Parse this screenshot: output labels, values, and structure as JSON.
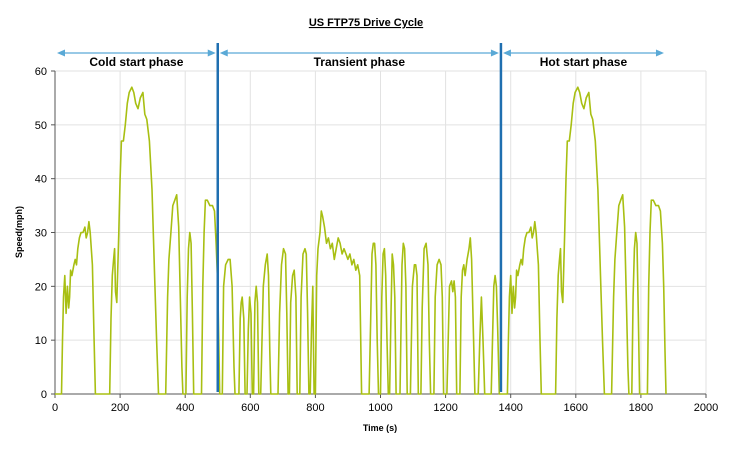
{
  "chart_data": {
    "type": "line",
    "title": "US FTP75 Drive Cycle",
    "xlabel": "Time (s)",
    "ylabel": "Speed(mph)",
    "xlim": [
      0,
      2000
    ],
    "ylim": [
      0,
      60
    ],
    "xticks": [
      0,
      200,
      400,
      600,
      800,
      1000,
      1200,
      1400,
      1600,
      1800,
      2000
    ],
    "yticks": [
      0,
      10,
      20,
      30,
      40,
      50,
      60
    ],
    "grid": true,
    "line_color": "#a8bf12",
    "divider_color": "#1f6fb0",
    "arrow_color": "#5aa9d6",
    "phases": [
      {
        "label": "Cold start phase",
        "start": 0,
        "end": 500
      },
      {
        "label": "Transient phase",
        "start": 500,
        "end": 1370
      },
      {
        "label": "Hot start phase",
        "start": 1370,
        "end": 1877
      }
    ],
    "phase_boundaries": [
      500,
      1370
    ],
    "series": [
      {
        "points": [
          [
            0,
            0
          ],
          [
            20,
            0
          ],
          [
            23,
            10
          ],
          [
            26,
            18
          ],
          [
            30,
            22
          ],
          [
            34,
            15
          ],
          [
            38,
            20
          ],
          [
            42,
            16
          ],
          [
            45,
            18
          ],
          [
            48,
            23
          ],
          [
            52,
            22
          ],
          [
            58,
            24
          ],
          [
            62,
            25
          ],
          [
            66,
            24
          ],
          [
            70,
            27
          ],
          [
            75,
            29
          ],
          [
            80,
            30
          ],
          [
            86,
            30
          ],
          [
            92,
            31
          ],
          [
            96,
            29
          ],
          [
            100,
            30
          ],
          [
            104,
            32
          ],
          [
            108,
            30
          ],
          [
            115,
            24
          ],
          [
            120,
            10
          ],
          [
            124,
            0
          ],
          [
            168,
            0
          ],
          [
            172,
            14
          ],
          [
            176,
            22
          ],
          [
            180,
            25
          ],
          [
            183,
            27
          ],
          [
            186,
            19
          ],
          [
            190,
            17
          ],
          [
            196,
            30
          ],
          [
            200,
            40
          ],
          [
            204,
            47
          ],
          [
            210,
            47
          ],
          [
            216,
            50
          ],
          [
            222,
            54
          ],
          [
            228,
            56
          ],
          [
            236,
            57
          ],
          [
            242,
            56
          ],
          [
            248,
            54
          ],
          [
            255,
            53
          ],
          [
            262,
            55
          ],
          [
            270,
            56
          ],
          [
            276,
            52
          ],
          [
            282,
            51
          ],
          [
            290,
            47
          ],
          [
            298,
            38
          ],
          [
            306,
            22
          ],
          [
            312,
            10
          ],
          [
            318,
            0
          ],
          [
            340,
            0
          ],
          [
            346,
            18
          ],
          [
            350,
            25
          ],
          [
            356,
            30
          ],
          [
            362,
            35
          ],
          [
            368,
            36
          ],
          [
            374,
            37
          ],
          [
            380,
            31
          ],
          [
            385,
            18
          ],
          [
            390,
            5
          ],
          [
            393,
            0
          ],
          [
            402,
            0
          ],
          [
            406,
            18
          ],
          [
            410,
            27
          ],
          [
            414,
            30
          ],
          [
            418,
            28
          ],
          [
            422,
            15
          ],
          [
            426,
            0
          ],
          [
            450,
            0
          ],
          [
            454,
            20
          ],
          [
            458,
            30
          ],
          [
            462,
            36
          ],
          [
            468,
            36
          ],
          [
            476,
            35
          ],
          [
            484,
            35
          ],
          [
            490,
            34
          ],
          [
            495,
            28
          ],
          [
            500,
            20
          ],
          [
            506,
            0
          ],
          [
            514,
            0
          ],
          [
            518,
            20
          ],
          [
            524,
            24
          ],
          [
            532,
            25
          ],
          [
            538,
            25
          ],
          [
            544,
            20
          ],
          [
            550,
            5
          ],
          [
            553,
            0
          ],
          [
            565,
            0
          ],
          [
            569,
            14
          ],
          [
            572,
            17
          ],
          [
            575,
            18
          ],
          [
            580,
            14
          ],
          [
            584,
            0
          ],
          [
            590,
            0
          ],
          [
            594,
            12
          ],
          [
            598,
            18
          ],
          [
            602,
            15
          ],
          [
            606,
            0
          ],
          [
            610,
            0
          ],
          [
            614,
            17
          ],
          [
            618,
            20
          ],
          [
            622,
            17
          ],
          [
            626,
            0
          ],
          [
            632,
            0
          ],
          [
            640,
            20
          ],
          [
            646,
            24
          ],
          [
            652,
            26
          ],
          [
            656,
            22
          ],
          [
            660,
            8
          ],
          [
            663,
            0
          ],
          [
            685,
            0
          ],
          [
            690,
            15
          ],
          [
            696,
            24
          ],
          [
            702,
            27
          ],
          [
            708,
            26
          ],
          [
            712,
            15
          ],
          [
            716,
            0
          ],
          [
            720,
            0
          ],
          [
            724,
            17
          ],
          [
            730,
            22
          ],
          [
            735,
            23
          ],
          [
            740,
            18
          ],
          [
            744,
            0
          ],
          [
            752,
            0
          ],
          [
            756,
            18
          ],
          [
            762,
            26
          ],
          [
            768,
            27
          ],
          [
            772,
            26
          ],
          [
            776,
            15
          ],
          [
            780,
            0
          ],
          [
            784,
            0
          ],
          [
            788,
            12
          ],
          [
            792,
            20
          ],
          [
            794,
            10
          ],
          [
            796,
            0
          ],
          [
            800,
            0
          ],
          [
            804,
            22
          ],
          [
            808,
            27
          ],
          [
            814,
            30
          ],
          [
            818,
            34
          ],
          [
            822,
            33
          ],
          [
            828,
            31
          ],
          [
            834,
            28
          ],
          [
            840,
            29
          ],
          [
            846,
            27
          ],
          [
            852,
            28
          ],
          [
            858,
            25
          ],
          [
            864,
            27
          ],
          [
            870,
            29
          ],
          [
            876,
            28
          ],
          [
            882,
            26
          ],
          [
            888,
            27
          ],
          [
            894,
            26
          ],
          [
            900,
            25
          ],
          [
            906,
            26
          ],
          [
            912,
            24
          ],
          [
            918,
            25
          ],
          [
            924,
            23
          ],
          [
            930,
            24
          ],
          [
            936,
            22
          ],
          [
            942,
            0
          ],
          [
            965,
            0
          ],
          [
            970,
            14
          ],
          [
            974,
            26
          ],
          [
            978,
            28
          ],
          [
            982,
            28
          ],
          [
            986,
            24
          ],
          [
            990,
            10
          ],
          [
            994,
            0
          ],
          [
            1000,
            0
          ],
          [
            1004,
            18
          ],
          [
            1008,
            26
          ],
          [
            1012,
            27
          ],
          [
            1016,
            22
          ],
          [
            1020,
            10
          ],
          [
            1024,
            0
          ],
          [
            1028,
            0
          ],
          [
            1032,
            14
          ],
          [
            1036,
            26
          ],
          [
            1040,
            24
          ],
          [
            1044,
            18
          ],
          [
            1048,
            0
          ],
          [
            1060,
            0
          ],
          [
            1066,
            24
          ],
          [
            1070,
            28
          ],
          [
            1074,
            27
          ],
          [
            1078,
            20
          ],
          [
            1082,
            0
          ],
          [
            1092,
            0
          ],
          [
            1098,
            20
          ],
          [
            1104,
            24
          ],
          [
            1108,
            24
          ],
          [
            1112,
            22
          ],
          [
            1116,
            0
          ],
          [
            1124,
            0
          ],
          [
            1128,
            16
          ],
          [
            1134,
            27
          ],
          [
            1140,
            28
          ],
          [
            1146,
            24
          ],
          [
            1150,
            10
          ],
          [
            1154,
            0
          ],
          [
            1164,
            0
          ],
          [
            1168,
            18
          ],
          [
            1174,
            24
          ],
          [
            1180,
            25
          ],
          [
            1186,
            24
          ],
          [
            1190,
            18
          ],
          [
            1194,
            0
          ],
          [
            1204,
            0
          ],
          [
            1208,
            10
          ],
          [
            1212,
            20
          ],
          [
            1218,
            21
          ],
          [
            1222,
            19
          ],
          [
            1226,
            21
          ],
          [
            1230,
            18
          ],
          [
            1234,
            0
          ],
          [
            1244,
            0
          ],
          [
            1248,
            18
          ],
          [
            1252,
            23
          ],
          [
            1256,
            24
          ],
          [
            1260,
            22
          ],
          [
            1266,
            25
          ],
          [
            1272,
            27
          ],
          [
            1276,
            29
          ],
          [
            1280,
            25
          ],
          [
            1286,
            10
          ],
          [
            1290,
            0
          ],
          [
            1300,
            0
          ],
          [
            1305,
            10
          ],
          [
            1310,
            18
          ],
          [
            1315,
            10
          ],
          [
            1320,
            0
          ],
          [
            1340,
            0
          ],
          [
            1344,
            10
          ],
          [
            1348,
            20
          ],
          [
            1352,
            22
          ],
          [
            1356,
            20
          ],
          [
            1360,
            12
          ],
          [
            1365,
            0
          ],
          [
            1370,
            0
          ],
          [
            1390,
            0
          ],
          [
            1393,
            10
          ],
          [
            1396,
            18
          ],
          [
            1400,
            22
          ],
          [
            1404,
            15
          ],
          [
            1408,
            20
          ],
          [
            1412,
            16
          ],
          [
            1415,
            18
          ],
          [
            1418,
            23
          ],
          [
            1422,
            22
          ],
          [
            1428,
            24
          ],
          [
            1432,
            25
          ],
          [
            1436,
            24
          ],
          [
            1440,
            27
          ],
          [
            1445,
            29
          ],
          [
            1450,
            30
          ],
          [
            1456,
            30
          ],
          [
            1462,
            31
          ],
          [
            1466,
            29
          ],
          [
            1470,
            30
          ],
          [
            1474,
            32
          ],
          [
            1478,
            30
          ],
          [
            1485,
            24
          ],
          [
            1490,
            10
          ],
          [
            1494,
            0
          ],
          [
            1538,
            0
          ],
          [
            1542,
            14
          ],
          [
            1546,
            22
          ],
          [
            1550,
            25
          ],
          [
            1553,
            27
          ],
          [
            1556,
            19
          ],
          [
            1560,
            17
          ],
          [
            1566,
            30
          ],
          [
            1570,
            40
          ],
          [
            1574,
            47
          ],
          [
            1580,
            47
          ],
          [
            1586,
            50
          ],
          [
            1592,
            54
          ],
          [
            1598,
            56
          ],
          [
            1606,
            57
          ],
          [
            1612,
            56
          ],
          [
            1618,
            54
          ],
          [
            1625,
            53
          ],
          [
            1632,
            55
          ],
          [
            1640,
            56
          ],
          [
            1646,
            52
          ],
          [
            1652,
            51
          ],
          [
            1660,
            47
          ],
          [
            1668,
            38
          ],
          [
            1676,
            22
          ],
          [
            1682,
            10
          ],
          [
            1688,
            0
          ],
          [
            1710,
            0
          ],
          [
            1716,
            18
          ],
          [
            1720,
            25
          ],
          [
            1726,
            30
          ],
          [
            1732,
            35
          ],
          [
            1738,
            36
          ],
          [
            1744,
            37
          ],
          [
            1750,
            31
          ],
          [
            1755,
            18
          ],
          [
            1760,
            5
          ],
          [
            1763,
            0
          ],
          [
            1772,
            0
          ],
          [
            1776,
            18
          ],
          [
            1780,
            27
          ],
          [
            1784,
            30
          ],
          [
            1788,
            28
          ],
          [
            1792,
            15
          ],
          [
            1796,
            0
          ],
          [
            1820,
            0
          ],
          [
            1824,
            20
          ],
          [
            1828,
            30
          ],
          [
            1832,
            36
          ],
          [
            1838,
            36
          ],
          [
            1846,
            35
          ],
          [
            1854,
            35
          ],
          [
            1860,
            34
          ],
          [
            1866,
            28
          ],
          [
            1870,
            20
          ],
          [
            1874,
            8
          ],
          [
            1877,
            0
          ]
        ]
      }
    ]
  }
}
